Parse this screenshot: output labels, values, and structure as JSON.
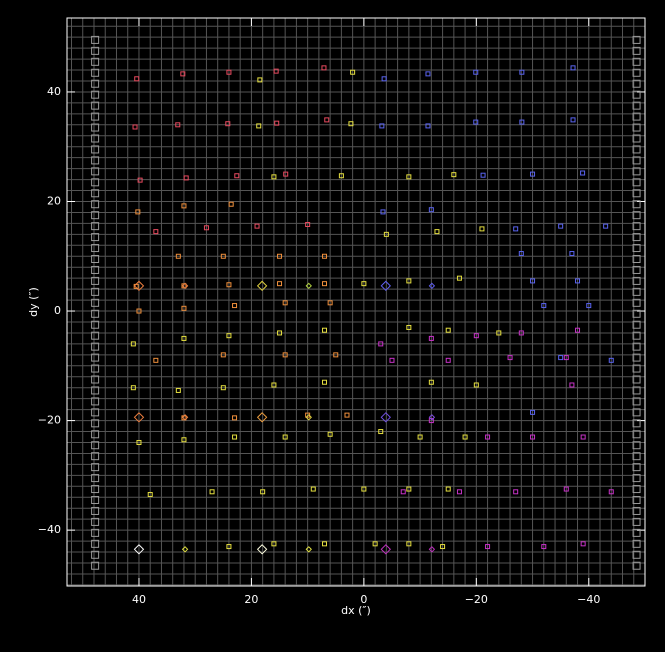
{
  "chart_data": {
    "type": "scatter",
    "x_label": "dx (″)",
    "y_label": "dy (″)",
    "xlim": [
      52.8,
      -50
    ],
    "ylim": [
      -50.2,
      53.5
    ],
    "xticks": [
      40,
      20,
      0,
      {
        "value": -20,
        "label": "−20"
      },
      {
        "value": -40,
        "label": "−40"
      }
    ],
    "yticks": [
      {
        "value": -40,
        "label": "−40"
      },
      {
        "value": -20,
        "label": "−20"
      },
      0,
      20,
      40
    ],
    "grid": true,
    "grid_step": 2,
    "grid_color": "#555555",
    "background": "#000000",
    "series": [
      {
        "marker": "square",
        "size": 4,
        "color": "#e84a5f",
        "x": [
          40.4,
          32.2,
          24,
          15.6,
          7.1,
          40.7,
          33.1,
          24.2,
          15.5,
          6.6,
          39.8,
          31.6,
          22.6,
          13.9,
          37,
          28,
          19,
          10
        ],
        "y": [
          42.4,
          43.3,
          43.6,
          43.8,
          44.4,
          33.6,
          34,
          34.2,
          34.3,
          34.9,
          23.9,
          24.3,
          24.7,
          25,
          14.5,
          15.2,
          15.5,
          15.8
        ]
      },
      {
        "marker": "square",
        "size": 4,
        "color": "#f0903c",
        "x": [
          40.2,
          32,
          23.6,
          33,
          25,
          15,
          7,
          40.5,
          32,
          24,
          15,
          7,
          40,
          32,
          23,
          14,
          6,
          37,
          25,
          14,
          5,
          32,
          23,
          10,
          3
        ],
        "y": [
          18.1,
          19.2,
          19.5,
          10,
          10,
          10,
          10,
          4.5,
          4.6,
          4.8,
          5,
          5,
          0,
          0.5,
          1,
          1.5,
          1.5,
          -9,
          -8,
          -8,
          -8,
          -19.5,
          -19.5,
          -19,
          -19
        ]
      },
      {
        "marker": "square",
        "size": 4,
        "color": "#e6e040",
        "x": [
          41,
          32,
          24,
          15,
          7,
          41,
          33,
          25,
          16,
          7,
          40,
          32,
          23,
          14,
          6,
          -3,
          38,
          27,
          18,
          9,
          0,
          -8,
          24,
          16,
          7,
          -2,
          -14,
          18.5,
          18.7,
          2,
          2.3,
          16,
          4,
          -8,
          -16,
          -4,
          -13,
          -21,
          0,
          -8,
          -17,
          -8,
          -15,
          -24,
          -12,
          -20,
          -10,
          -18,
          -15,
          -8
        ],
        "y": [
          -6,
          -5,
          -4.5,
          -4,
          -3.5,
          -14,
          -14.5,
          -14,
          -13.5,
          -13,
          -24,
          -23.5,
          -23,
          -23,
          -22.5,
          -22,
          -33.5,
          -33,
          -33,
          -32.5,
          -32.5,
          -32.5,
          -43,
          -42.5,
          -42.5,
          -42.5,
          -43,
          42.2,
          33.8,
          43.6,
          34.2,
          24.5,
          24.7,
          24.5,
          24.9,
          14,
          14.5,
          15,
          5,
          5.5,
          6,
          -3,
          -3.5,
          -4,
          -13,
          -13.5,
          -23,
          -23,
          -32.5,
          -42.5
        ]
      },
      {
        "marker": "square",
        "size": 4,
        "color": "#5a64f0",
        "x": [
          -3.6,
          -11.4,
          -19.9,
          -28.1,
          -37.2,
          -3.2,
          -11.4,
          -19.9,
          -28.1,
          -37.2,
          -21.2,
          -30,
          -38.9,
          -3.4,
          -12,
          -27,
          -35,
          -43,
          -28,
          -37,
          -30,
          -38,
          -32,
          -40,
          -44,
          -35,
          -30
        ],
        "y": [
          42.4,
          43.3,
          43.6,
          43.6,
          44.4,
          33.8,
          33.8,
          34.5,
          34.5,
          34.9,
          24.8,
          25,
          25.2,
          18.1,
          18.5,
          15,
          15.5,
          15.5,
          10.5,
          10.5,
          5.5,
          5.5,
          1,
          1,
          -9,
          -8.5,
          -18.5
        ]
      },
      {
        "marker": "square",
        "size": 4,
        "color": "#c832c8",
        "x": [
          -3,
          -12,
          -20,
          -28,
          -38,
          -5,
          -15,
          -26,
          -36,
          -37,
          -12,
          -22,
          -30,
          -39,
          -7,
          -17,
          -27,
          -36,
          -44,
          -22,
          -32,
          -39
        ],
        "y": [
          -6,
          -5,
          -4.5,
          -4,
          -3.5,
          -9,
          -9,
          -8.5,
          -8.5,
          -13.5,
          -20,
          -23,
          -23,
          -23,
          -33,
          -33,
          -33,
          -32.5,
          -33,
          -43,
          -43,
          -42.5
        ]
      },
      {
        "marker": "diamond",
        "size": 9,
        "colors": [
          "#f08040",
          "#e0d040",
          "#6060f0",
          "#f08040",
          "#f0a040",
          "#7050e0",
          "#ffffff",
          "#ffffe0",
          "#c030c0"
        ],
        "x": [
          40,
          18.1,
          -3.9,
          40,
          18.1,
          -3.9,
          40,
          18.1,
          -3.9
        ],
        "y": [
          4.6,
          4.6,
          4.6,
          -19.4,
          -19.4,
          -19.4,
          -43.5,
          -43.5,
          -43.5
        ]
      },
      {
        "marker": "diamond",
        "size": 5,
        "colors": [
          "#f08040",
          "#b0d040",
          "#6060f0",
          "#f08040",
          "#e0d040",
          "#8050e0",
          "#e0e040",
          "#e0e040",
          "#c030c0"
        ],
        "x": [
          31.8,
          9.8,
          -12.1,
          31.8,
          9.8,
          -12.1,
          31.8,
          9.8,
          -12.1
        ],
        "y": [
          4.6,
          4.6,
          4.6,
          -19.4,
          -19.4,
          -19.4,
          -43.5,
          -43.5,
          -43.5
        ]
      },
      {
        "marker": "square",
        "size": 7,
        "color": "#9a9a9a",
        "x": [
          47.8,
          47.8,
          47.8,
          47.8,
          47.8,
          47.8,
          47.8,
          47.8,
          47.8,
          47.8,
          47.8,
          47.8,
          47.8,
          47.8,
          47.8,
          47.8,
          47.8,
          47.8,
          47.8,
          47.8,
          47.8,
          47.8,
          47.8,
          47.8,
          47.8,
          47.8,
          47.8,
          47.8,
          47.8,
          47.8,
          47.8,
          47.8,
          47.8,
          47.8,
          47.8,
          47.8,
          47.8,
          47.8,
          47.8,
          47.8,
          47.8,
          47.8,
          47.8,
          47.8,
          47.8,
          47.8,
          47.8,
          47.8,
          47.8
        ],
        "y": [
          49.5,
          47.5,
          45.5,
          43.5,
          41.5,
          39.5,
          37.5,
          35.5,
          33.5,
          31.5,
          29.5,
          27.5,
          25.5,
          23.5,
          21.5,
          19.5,
          17.5,
          15.5,
          13.5,
          11.5,
          9.5,
          7.5,
          5.5,
          3.5,
          1.5,
          -0.5,
          -2.5,
          -4.5,
          -6.5,
          -8.5,
          -10.5,
          -12.5,
          -14.5,
          -16.5,
          -18.5,
          -20.5,
          -22.5,
          -24.5,
          -26.5,
          -28.5,
          -30.5,
          -32.5,
          -34.5,
          -36.5,
          -38.5,
          -40.5,
          -42.5,
          -44.5,
          -46.5
        ]
      },
      {
        "marker": "square",
        "size": 7,
        "color": "#9a9a9a",
        "x": [
          -48.5,
          -48.5,
          -48.5,
          -48.5,
          -48.5,
          -48.5,
          -48.5,
          -48.5,
          -48.5,
          -48.5,
          -48.5,
          -48.5,
          -48.5,
          -48.5,
          -48.5,
          -48.5,
          -48.5,
          -48.5,
          -48.5,
          -48.5,
          -48.5,
          -48.5,
          -48.5,
          -48.5,
          -48.5,
          -48.5,
          -48.5,
          -48.5,
          -48.5,
          -48.5,
          -48.5,
          -48.5,
          -48.5,
          -48.5,
          -48.5,
          -48.5,
          -48.5,
          -48.5,
          -48.5,
          -48.5,
          -48.5,
          -48.5,
          -48.5,
          -48.5,
          -48.5,
          -48.5,
          -48.5,
          -48.5,
          -48.5
        ],
        "y": [
          49.5,
          47.5,
          45.5,
          43.5,
          41.5,
          39.5,
          37.5,
          35.5,
          33.5,
          31.5,
          29.5,
          27.5,
          25.5,
          23.5,
          21.5,
          19.5,
          17.5,
          15.5,
          13.5,
          11.5,
          9.5,
          7.5,
          5.5,
          3.5,
          1.5,
          -0.5,
          -2.5,
          -4.5,
          -6.5,
          -8.5,
          -10.5,
          -12.5,
          -14.5,
          -16.5,
          -18.5,
          -20.5,
          -22.5,
          -24.5,
          -26.5,
          -28.5,
          -30.5,
          -32.5,
          -34.5,
          -36.5,
          -38.5,
          -40.5,
          -42.5,
          -44.5,
          -46.5
        ]
      }
    ]
  }
}
